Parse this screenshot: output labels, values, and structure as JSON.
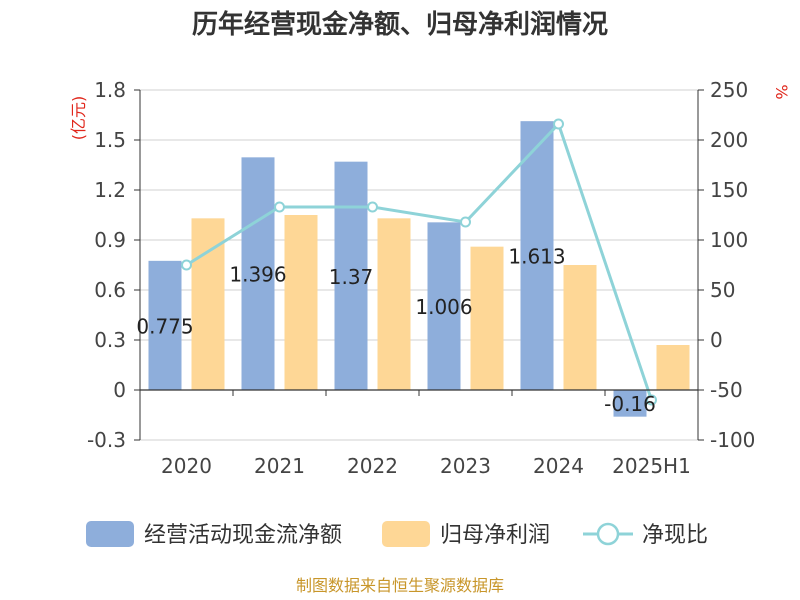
{
  "chart_data": {
    "type": "bar",
    "title": "历年经营现金净额、归母净利润情况",
    "categories": [
      "2020",
      "2021",
      "2022",
      "2023",
      "2024",
      "2025H1"
    ],
    "y_left": {
      "unit": "(亿元)",
      "min": -0.3,
      "max": 1.8,
      "ticks": [
        "1.8",
        "1.5",
        "1.2",
        "0.9",
        "0.6",
        "0.3",
        "0",
        "-0.3"
      ]
    },
    "y_right": {
      "unit": "%",
      "min": -100,
      "max": 250,
      "ticks": [
        "250",
        "200",
        "150",
        "100",
        "50",
        "0",
        "-50",
        "-100"
      ]
    },
    "series": [
      {
        "name": "经营活动现金流净额",
        "kind": "bar",
        "axis": "left",
        "color": "#8eaedb",
        "values": [
          0.775,
          1.396,
          1.37,
          1.006,
          1.613,
          -0.16
        ],
        "labels": [
          "0.775",
          "1.396",
          "1.37",
          "1.006",
          "1.613",
          "-0.16"
        ]
      },
      {
        "name": "归母净利润",
        "kind": "bar",
        "axis": "left",
        "color": "#fed796",
        "values": [
          1.03,
          1.05,
          1.03,
          0.86,
          0.75,
          0.27
        ]
      },
      {
        "name": "净现比",
        "kind": "line",
        "axis": "right",
        "color": "#8ed3d8",
        "values": [
          75,
          133,
          133,
          118,
          216,
          -60
        ]
      }
    ],
    "grid": true,
    "legend_position": "bottom"
  },
  "footer": {
    "source": "制图数据来自恒生聚源数据库"
  }
}
